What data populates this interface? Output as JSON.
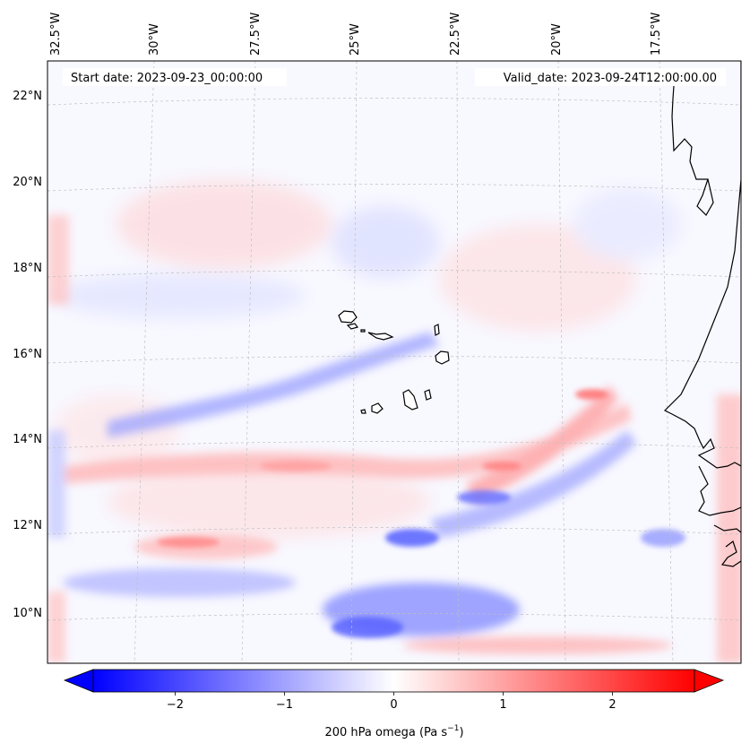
{
  "header": {
    "start_date": "Start date: 2023-09-23_00:00:00",
    "valid_date": "Valid_date: 2023-09-24T12:00:00.00"
  },
  "axes": {
    "lon_labels": [
      "32.5°W",
      "30°W",
      "27.5°W",
      "25°W",
      "22.5°W",
      "20°W",
      "17.5°W"
    ],
    "lat_labels": [
      "22°N",
      "20°N",
      "18°N",
      "16°N",
      "14°N",
      "12°N",
      "10°N"
    ]
  },
  "colorbar": {
    "title": "200 hPa omega (Pa s",
    "title_exponent": "−1",
    "title_close": ")",
    "ticks": [
      "−2",
      "−1",
      "0",
      "1",
      "2"
    ],
    "tick_values": [
      -2,
      -1,
      0,
      1,
      2
    ],
    "vmin": -2.75,
    "vmax": 2.75,
    "colormap": "bwr",
    "color_low": "#0000ff",
    "color_mid": "#ffffff",
    "color_high": "#ff0000"
  },
  "map": {
    "field": "200 hPa omega",
    "grid": true,
    "coastline_color": "#000000",
    "ascent_color": "#6666ff",
    "descent_color": "#ff6666"
  }
}
